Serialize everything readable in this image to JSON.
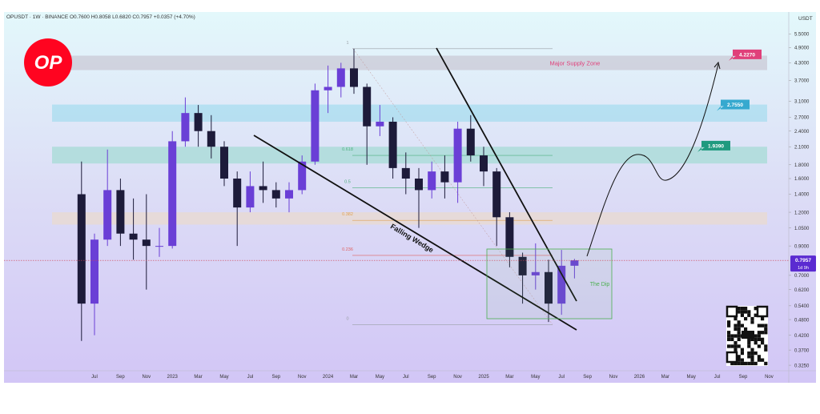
{
  "chart_data": {
    "type": "candlestick",
    "header": "OPUSDT · 1W · BINANCE  O0.7600  H0.8058  L0.6820  C0.7957  +0.0357 (+4.70%)",
    "currency": "USDT",
    "logo": "OP",
    "log_scale": true,
    "up_color": "#6a3fd6",
    "down_color": "#1d1b3a",
    "open": [
      1.4,
      0.55,
      0.95,
      1.45,
      1.0,
      0.95,
      0.9,
      0.9,
      2.2,
      2.8,
      2.4,
      2.1,
      1.6,
      1.25,
      1.5,
      1.45,
      1.35,
      1.45,
      1.85,
      3.4,
      3.5,
      4.1,
      3.5,
      2.5,
      2.6,
      1.75,
      1.6,
      1.45,
      1.7,
      1.55,
      2.45,
      1.95,
      1.7,
      1.15,
      0.82,
      0.7,
      0.72,
      0.55,
      0.76
    ],
    "high": [
      1.85,
      1.0,
      2.05,
      1.6,
      1.35,
      1.4,
      1.05,
      2.4,
      3.2,
      3.0,
      2.75,
      2.2,
      1.7,
      1.7,
      1.85,
      1.55,
      1.55,
      1.95,
      3.6,
      4.2,
      4.3,
      4.85,
      3.6,
      3.0,
      2.7,
      2.0,
      1.75,
      1.85,
      1.95,
      2.6,
      2.75,
      2.1,
      1.75,
      1.2,
      0.85,
      0.92,
      0.8,
      0.87,
      0.8058
    ],
    "low": [
      0.4,
      0.42,
      0.9,
      0.9,
      0.8,
      0.62,
      0.82,
      0.88,
      2.1,
      2.1,
      1.9,
      1.5,
      0.9,
      1.2,
      1.3,
      1.25,
      1.2,
      1.4,
      1.8,
      2.8,
      3.2,
      3.3,
      1.8,
      2.3,
      1.6,
      1.4,
      1.05,
      1.35,
      1.35,
      1.3,
      1.85,
      1.5,
      0.9,
      0.75,
      0.55,
      0.62,
      0.47,
      0.5,
      0.682
    ],
    "close": [
      0.55,
      0.95,
      1.45,
      1.0,
      0.95,
      0.9,
      0.9,
      2.2,
      2.8,
      2.4,
      2.1,
      1.6,
      1.25,
      1.5,
      1.45,
      1.35,
      1.45,
      1.85,
      3.4,
      3.5,
      4.1,
      3.5,
      2.5,
      2.6,
      1.75,
      1.6,
      1.45,
      1.7,
      1.55,
      2.45,
      1.95,
      1.7,
      1.15,
      0.82,
      0.7,
      0.72,
      0.55,
      0.76,
      0.7957
    ],
    "xticks": [
      "Jul",
      "Sep",
      "Nov",
      "2023",
      "Mar",
      "May",
      "Jul",
      "Sep",
      "Nov",
      "2024",
      "Mar",
      "May",
      "Jul",
      "Sep",
      "Nov",
      "2025",
      "Mar",
      "May",
      "Jul",
      "Sep",
      "Nov",
      "2026",
      "Mar",
      "May",
      "Jul",
      "Sep",
      "Nov"
    ],
    "ylim": [
      0.31,
      6.5
    ],
    "yticks": [
      {
        "value": 5.5,
        "label": "5.5000"
      },
      {
        "value": 4.9,
        "label": "4.9000"
      },
      {
        "value": 4.3,
        "label": "4.3000"
      },
      {
        "value": 3.7,
        "label": "3.7000"
      },
      {
        "value": 3.1,
        "label": "3.1000"
      },
      {
        "value": 2.7,
        "label": "2.7000"
      },
      {
        "value": 2.4,
        "label": "2.4000"
      },
      {
        "value": 2.1,
        "label": "2.1000"
      },
      {
        "value": 1.8,
        "label": "1.8000"
      },
      {
        "value": 1.6,
        "label": "1.6000"
      },
      {
        "value": 1.4,
        "label": "1.4000"
      },
      {
        "value": 1.2,
        "label": "1.2000"
      },
      {
        "value": 1.05,
        "label": "1.0500"
      },
      {
        "value": 0.9,
        "label": "0.9000"
      },
      {
        "value": 0.7,
        "label": "0.7000"
      },
      {
        "value": 0.62,
        "label": "0.6200"
      },
      {
        "value": 0.54,
        "label": "0.5400"
      },
      {
        "value": 0.48,
        "label": "0.4800"
      },
      {
        "value": 0.42,
        "label": "0.4200"
      },
      {
        "value": 0.37,
        "label": "0.3700"
      },
      {
        "value": 0.325,
        "label": "0.3250"
      }
    ],
    "last_price": {
      "value": 0.7957,
      "label": "0.7957"
    },
    "countdown": "1d 9h",
    "zones": [
      {
        "top": 4.57,
        "bottom": 4.04,
        "color": "#c9c9d6",
        "label": "Major Supply Zone"
      },
      {
        "top": 3.01,
        "bottom": 2.6,
        "color": "#a8dcef"
      },
      {
        "top": 2.1,
        "bottom": 1.82,
        "color": "#a5dbd6"
      },
      {
        "top": 1.2,
        "bottom": 1.08,
        "color": "#e9d9cf"
      }
    ],
    "fib_levels": [
      {
        "level": 1,
        "price": 4.85,
        "color": "#9aa0a6"
      },
      {
        "level": 0.618,
        "price": 1.95,
        "color": "#4caf7d"
      },
      {
        "level": 0.5,
        "price": 1.48,
        "color": "#4caf7d"
      },
      {
        "level": 0.382,
        "price": 1.12,
        "color": "#e0a050"
      },
      {
        "level": 0.236,
        "price": 0.83,
        "color": "#e06060"
      },
      {
        "level": 0,
        "price": 0.46,
        "color": "#9aa0a6"
      }
    ],
    "price_labels": [
      {
        "value": 4.227,
        "label": "4.2270",
        "color": "#e0407a"
      },
      {
        "value": 2.755,
        "label": "2.7550",
        "color": "#36a9cf"
      },
      {
        "value": 1.939,
        "label": "1.9390",
        "color": "#1f9a7f"
      }
    ],
    "annotations": {
      "wedge": "Falling Wedge",
      "dip": "The Dip"
    }
  }
}
